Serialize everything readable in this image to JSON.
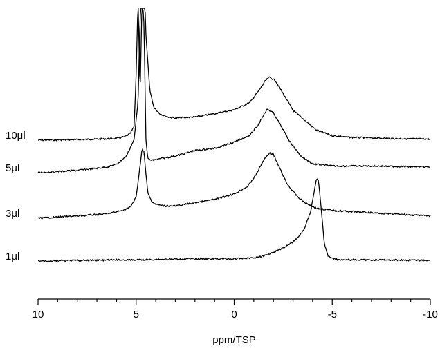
{
  "chart_data": {
    "type": "line",
    "title": "",
    "xlabel": "ppm/TSP",
    "ylabel": "",
    "xlim": [
      10,
      -10
    ],
    "x_reversed": true,
    "xticks": [
      10,
      5,
      0,
      -5,
      -10
    ],
    "xtick_labels": [
      "10",
      "5",
      "0",
      "-5",
      "-10"
    ],
    "grid": false,
    "stacked_offsets": true,
    "series": [
      {
        "name": "10μl",
        "points": [
          [
            10,
            0
          ],
          [
            8,
            1
          ],
          [
            6,
            3
          ],
          [
            5.6,
            6
          ],
          [
            5.3,
            12
          ],
          [
            5.1,
            25
          ],
          [
            5.0,
            120
          ],
          [
            4.9,
            260
          ],
          [
            4.8,
            80
          ],
          [
            4.7,
            250
          ],
          [
            4.6,
            300
          ],
          [
            4.5,
            190
          ],
          [
            4.3,
            90
          ],
          [
            4.1,
            60
          ],
          [
            3.8,
            48
          ],
          [
            3.4,
            42
          ],
          [
            3,
            40
          ],
          [
            2,
            42
          ],
          [
            1,
            48
          ],
          [
            0,
            55
          ],
          [
            -0.8,
            68
          ],
          [
            -1.3,
            92
          ],
          [
            -1.6,
            108
          ],
          [
            -1.8,
            114
          ],
          [
            -2.1,
            108
          ],
          [
            -2.5,
            84
          ],
          [
            -3,
            54
          ],
          [
            -3.6,
            36
          ],
          [
            -4.2,
            18
          ],
          [
            -5,
            8
          ],
          [
            -6,
            5
          ],
          [
            -8,
            3
          ],
          [
            -10,
            2
          ]
        ]
      },
      {
        "name": "5μl",
        "points": [
          [
            10,
            0
          ],
          [
            8,
            4
          ],
          [
            6.5,
            10
          ],
          [
            6,
            15
          ],
          [
            5.5,
            30
          ],
          [
            5.1,
            60
          ],
          [
            4.9,
            130
          ],
          [
            4.8,
            280
          ],
          [
            4.7,
            320
          ],
          [
            4.6,
            270
          ],
          [
            4.5,
            60
          ],
          [
            4.4,
            25
          ],
          [
            4.2,
            22
          ],
          [
            3.5,
            27
          ],
          [
            3,
            30
          ],
          [
            2,
            40
          ],
          [
            1,
            44
          ],
          [
            0,
            55
          ],
          [
            -0.8,
            68
          ],
          [
            -1.2,
            85
          ],
          [
            -1.5,
            105
          ],
          [
            -1.7,
            115
          ],
          [
            -2.0,
            108
          ],
          [
            -2.3,
            90
          ],
          [
            -2.8,
            58
          ],
          [
            -3.4,
            30
          ],
          [
            -4,
            16
          ],
          [
            -5,
            12
          ],
          [
            -7,
            12
          ],
          [
            -10,
            10
          ]
        ]
      },
      {
        "name": "3μl",
        "points": [
          [
            10,
            0
          ],
          [
            8,
            4
          ],
          [
            6.5,
            8
          ],
          [
            5.8,
            13
          ],
          [
            5.3,
            20
          ],
          [
            5.0,
            38
          ],
          [
            4.8,
            95
          ],
          [
            4.7,
            125
          ],
          [
            4.6,
            120
          ],
          [
            4.5,
            80
          ],
          [
            4.4,
            45
          ],
          [
            4.2,
            30
          ],
          [
            4,
            25
          ],
          [
            3.5,
            22
          ],
          [
            3,
            22
          ],
          [
            2,
            28
          ],
          [
            1,
            34
          ],
          [
            0,
            44
          ],
          [
            -0.7,
            58
          ],
          [
            -1.1,
            78
          ],
          [
            -1.5,
            105
          ],
          [
            -1.8,
            118
          ],
          [
            -2.0,
            115
          ],
          [
            -2.3,
            92
          ],
          [
            -2.7,
            62
          ],
          [
            -3.2,
            40
          ],
          [
            -3.6,
            28
          ],
          [
            -4.2,
            18
          ],
          [
            -5,
            14
          ],
          [
            -7,
            10
          ],
          [
            -10,
            4
          ]
        ]
      },
      {
        "name": "1μl",
        "points": [
          [
            10,
            0
          ],
          [
            8,
            1
          ],
          [
            6,
            2
          ],
          [
            5,
            2
          ],
          [
            4,
            3
          ],
          [
            2,
            4
          ],
          [
            0,
            4
          ],
          [
            -0.5,
            5
          ],
          [
            -1,
            6
          ],
          [
            -1.5,
            9
          ],
          [
            -2,
            16
          ],
          [
            -2.5,
            24
          ],
          [
            -2.9,
            32
          ],
          [
            -3.1,
            38
          ],
          [
            -3.3,
            44
          ],
          [
            -3.6,
            60
          ],
          [
            -3.9,
            90
          ],
          [
            -4.1,
            130
          ],
          [
            -4.2,
            150
          ],
          [
            -4.3,
            145
          ],
          [
            -4.45,
            90
          ],
          [
            -4.6,
            30
          ],
          [
            -4.8,
            8
          ],
          [
            -5.2,
            3
          ],
          [
            -6,
            2
          ],
          [
            -8,
            2
          ],
          [
            -10,
            1
          ]
        ]
      }
    ]
  }
}
